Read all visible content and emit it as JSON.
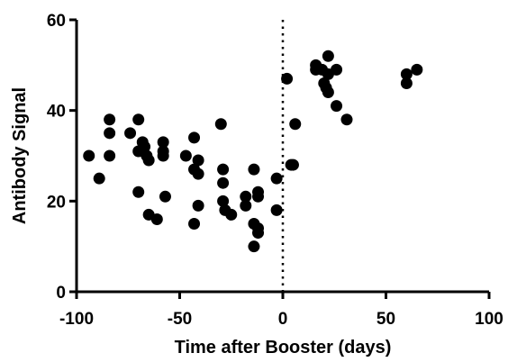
{
  "chart_data": {
    "type": "scatter",
    "xlabel": "Time after Booster (days)",
    "ylabel": "Antibody Signal",
    "xlim": [
      -100,
      100
    ],
    "ylim": [
      0,
      60
    ],
    "xticks": [
      -100,
      -50,
      0,
      50,
      100
    ],
    "yticks": [
      0,
      20,
      40,
      60
    ],
    "xtick_labels": [
      "-100",
      "-50",
      "0",
      "50",
      "100"
    ],
    "ytick_labels": [
      "0",
      "20",
      "40",
      "60"
    ],
    "reference_line": {
      "x": 0,
      "style": "dotted"
    },
    "grid": false,
    "marker_color": "#000000",
    "series": [
      {
        "points": [
          [
            -94,
            30
          ],
          [
            -89,
            25
          ],
          [
            -84,
            38
          ],
          [
            -84,
            35
          ],
          [
            -84,
            30
          ],
          [
            -74,
            35
          ],
          [
            -70,
            38
          ],
          [
            -70,
            31
          ],
          [
            -70,
            22
          ],
          [
            -68,
            33
          ],
          [
            -67,
            32
          ],
          [
            -66,
            30
          ],
          [
            -65,
            17
          ],
          [
            -65,
            29
          ],
          [
            -61,
            16
          ],
          [
            -58,
            33
          ],
          [
            -58,
            31
          ],
          [
            -58,
            30
          ],
          [
            -57,
            21
          ],
          [
            -47,
            30
          ],
          [
            -43,
            34
          ],
          [
            -43,
            27
          ],
          [
            -43,
            15
          ],
          [
            -41,
            29
          ],
          [
            -41,
            26
          ],
          [
            -41,
            19
          ],
          [
            -30,
            37
          ],
          [
            -29,
            27
          ],
          [
            -29,
            24
          ],
          [
            -29,
            20
          ],
          [
            -28,
            18
          ],
          [
            -25,
            17
          ],
          [
            -18,
            19
          ],
          [
            -18,
            21
          ],
          [
            -14,
            27
          ],
          [
            -14,
            15
          ],
          [
            -14,
            10
          ],
          [
            -12,
            22
          ],
          [
            -12,
            21
          ],
          [
            -12,
            14
          ],
          [
            -12,
            13
          ],
          [
            -3,
            25
          ],
          [
            -3,
            18
          ],
          [
            2,
            47
          ],
          [
            4,
            28
          ],
          [
            5,
            28
          ],
          [
            6,
            37
          ],
          [
            16,
            50
          ],
          [
            16,
            49
          ],
          [
            19,
            49
          ],
          [
            20,
            46
          ],
          [
            21,
            45
          ],
          [
            22,
            52
          ],
          [
            22,
            48
          ],
          [
            22,
            44
          ],
          [
            26,
            49
          ],
          [
            26,
            41
          ],
          [
            31,
            38
          ],
          [
            60,
            48
          ],
          [
            60,
            46
          ],
          [
            65,
            49
          ]
        ]
      }
    ]
  }
}
